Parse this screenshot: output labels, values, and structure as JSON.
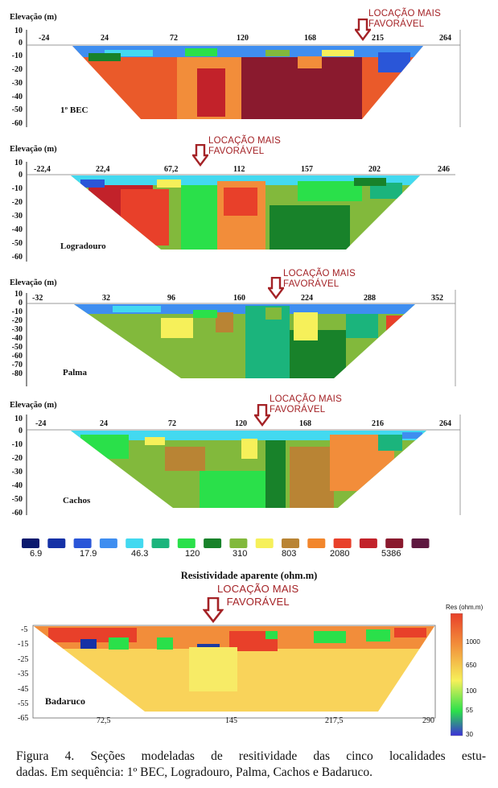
{
  "chart_data": [
    {
      "type": "heatmap",
      "ylabel": "Elevação (m)",
      "site": "1º BEC",
      "x_ticks": [
        "-24",
        "24",
        "72",
        "120",
        "168",
        "215",
        "264"
      ],
      "y_ticks": [
        "10",
        "0",
        "-10",
        "-20",
        "-30",
        "-40",
        "-50",
        "-60"
      ],
      "ylim": [
        -60,
        10
      ],
      "annotation": [
        "LOCAÇÃO MAIS",
        "FAVORÁVEL"
      ]
    },
    {
      "type": "heatmap",
      "ylabel": "Elevação (m)",
      "site": "Logradouro",
      "x_ticks": [
        "-22,4",
        "22,4",
        "67,2",
        "112",
        "157",
        "202",
        "246"
      ],
      "y_ticks": [
        "10",
        "0",
        "-10",
        "-20",
        "-30",
        "-40",
        "-50",
        "-60"
      ],
      "ylim": [
        -60,
        10
      ],
      "annotation": [
        "LOCAÇÃO MAIS",
        "FAVORÁVEL"
      ]
    },
    {
      "type": "heatmap",
      "ylabel": "Elevação (m)",
      "site": "Palma",
      "x_ticks": [
        "-32",
        "32",
        "96",
        "160",
        "224",
        "288",
        "352"
      ],
      "y_ticks": [
        "10",
        "0",
        "-10",
        "-20",
        "-30",
        "-40",
        "-50",
        "-60",
        "-70",
        "-80"
      ],
      "ylim": [
        -80,
        10
      ],
      "annotation": [
        "LOCAÇÃO MAIS",
        "FAVORÁVEL"
      ]
    },
    {
      "type": "heatmap",
      "ylabel": "Elevação (m)",
      "site": "Cachos",
      "x_ticks": [
        "-24",
        "24",
        "72",
        "120",
        "168",
        "216",
        "264"
      ],
      "y_ticks": [
        "10",
        "0",
        "-10",
        "-20",
        "-30",
        "-40",
        "-50",
        "-60"
      ],
      "ylim": [
        -60,
        10
      ],
      "annotation": [
        "LOCAÇÃO MAIS",
        "FAVORÁVEL"
      ]
    },
    {
      "type": "heatmap",
      "site": "Badaruco",
      "x_ticks": [
        "72,5",
        "145",
        "217,5",
        "290"
      ],
      "y_ticks": [
        "-5",
        "-15",
        "-25",
        "-35",
        "-45",
        "-55",
        "-65"
      ],
      "ylim": [
        -65,
        0
      ],
      "annotation": [
        "LOCAÇÃO MAIS",
        "FAVORÁVEL"
      ],
      "colorbar": {
        "title": "Res (ohm.m)",
        "ticks": [
          "1000",
          "650",
          "100",
          "55",
          "30"
        ]
      }
    }
  ],
  "legend": {
    "title": "Resistividade aparente (ohm.m)",
    "labels": [
      "6.9",
      "17.9",
      "46.3",
      "120",
      "310",
      "803",
      "2080",
      "5386"
    ],
    "colors": [
      "#0b1a6e",
      "#1531a6",
      "#2a56d8",
      "#3f8ef0",
      "#43d9f0",
      "#1bb47c",
      "#2ae04a",
      "#18822a",
      "#82b93c",
      "#f6f05a",
      "#b98434",
      "#f2862c",
      "#e8402a",
      "#c2222a",
      "#8a1a2e",
      "#5e1840"
    ]
  },
  "caption": {
    "line1": "Figura 4. Seções modeladas de resitividade das cinco localidades estu-",
    "line2": "dadas. Em sequência: 1º BEC, Logradouro, Palma, Cachos e Badaruco."
  }
}
